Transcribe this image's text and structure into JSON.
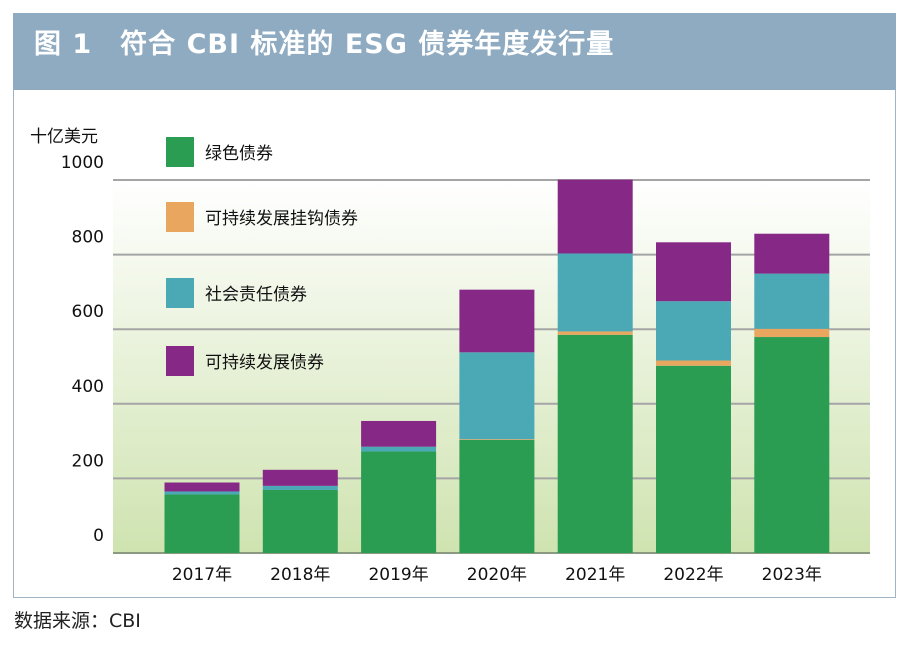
{
  "title": "图 1　符合 CBI 标准的 ESG 债券年度发行量",
  "source": "数据来源：CBI",
  "chart_data": {
    "type": "bar",
    "stacked": true,
    "ylabel": "十亿美元",
    "ylim": [
      0,
      1000
    ],
    "yticks": [
      0,
      200,
      400,
      600,
      800,
      1000
    ],
    "grid": true,
    "legend_position": "top-left",
    "categories": [
      "2017年",
      "2018年",
      "2019年",
      "2020年",
      "2021年",
      "2022年",
      "2023年"
    ],
    "series": [
      {
        "name": "绿色债券",
        "color": "#2a9d52",
        "values": [
          157,
          169,
          272,
          303,
          585,
          502,
          579
        ]
      },
      {
        "name": "可持续发展挂钩债券",
        "color": "#e8a65f",
        "values": [
          0,
          0,
          0,
          2,
          9,
          14,
          22
        ]
      },
      {
        "name": "社会责任债券",
        "color": "#4aa9b4",
        "values": [
          8,
          11,
          13,
          233,
          209,
          159,
          148
        ]
      },
      {
        "name": "可持续发展债券",
        "color": "#862886",
        "values": [
          24,
          43,
          69,
          168,
          198,
          158,
          107
        ]
      }
    ],
    "legend_order": [
      0,
      1,
      2,
      3
    ]
  }
}
